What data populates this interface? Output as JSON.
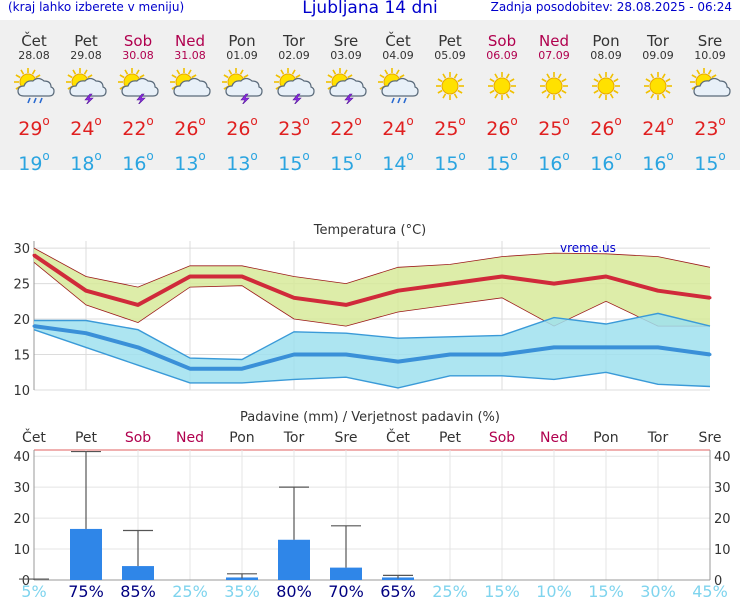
{
  "header": {
    "left": "(kraj lahko izberete v meniju)",
    "title": "Ljubljana 14 dni",
    "updated": "Zadnja posodobitev: 28.08.2025 - 06:24"
  },
  "colors": {
    "weekend": "#b0004e",
    "max_temp": "#e02020",
    "min_temp": "#2aa4e0",
    "max_band": "#d7ea9a",
    "min_band": "#9fe0ee",
    "precip_bar": "#2f86e8",
    "pct_low": "#7fd4ee",
    "pct_high": "#000080"
  },
  "days": [
    {
      "name": "Čet",
      "date": "28.08",
      "weekend": false,
      "icon": "sun-cloud-rain-icon",
      "tmax": "29",
      "tmin": "19"
    },
    {
      "name": "Pet",
      "date": "29.08",
      "weekend": false,
      "icon": "sun-cloud-thunder-icon",
      "tmax": "24",
      "tmin": "18"
    },
    {
      "name": "Sob",
      "date": "30.08",
      "weekend": true,
      "icon": "sun-cloud-thunder-icon",
      "tmax": "22",
      "tmin": "16"
    },
    {
      "name": "Ned",
      "date": "31.08",
      "weekend": true,
      "icon": "sun-cloud-icon",
      "tmax": "26",
      "tmin": "13"
    },
    {
      "name": "Pon",
      "date": "01.09",
      "weekend": false,
      "icon": "sun-cloud-thunder-icon",
      "tmax": "26",
      "tmin": "13"
    },
    {
      "name": "Tor",
      "date": "02.09",
      "weekend": false,
      "icon": "sun-cloud-thunder-icon",
      "tmax": "23",
      "tmin": "15"
    },
    {
      "name": "Sre",
      "date": "03.09",
      "weekend": false,
      "icon": "sun-cloud-thunder-icon",
      "tmax": "22",
      "tmin": "15"
    },
    {
      "name": "Čet",
      "date": "04.09",
      "weekend": false,
      "icon": "sun-cloud-rain-icon",
      "tmax": "24",
      "tmin": "14"
    },
    {
      "name": "Pet",
      "date": "05.09",
      "weekend": false,
      "icon": "sun-icon",
      "tmax": "25",
      "tmin": "15"
    },
    {
      "name": "Sob",
      "date": "06.09",
      "weekend": true,
      "icon": "sun-icon",
      "tmax": "26",
      "tmin": "15"
    },
    {
      "name": "Ned",
      "date": "07.09",
      "weekend": true,
      "icon": "sun-icon",
      "tmax": "25",
      "tmin": "16"
    },
    {
      "name": "Pon",
      "date": "08.09",
      "weekend": false,
      "icon": "sun-icon",
      "tmax": "26",
      "tmin": "16"
    },
    {
      "name": "Tor",
      "date": "09.09",
      "weekend": false,
      "icon": "sun-icon",
      "tmax": "24",
      "tmin": "16"
    },
    {
      "name": "Sre",
      "date": "10.09",
      "weekend": false,
      "icon": "sun-cloud-icon",
      "tmax": "23",
      "tmin": "15"
    }
  ],
  "chart_data": [
    {
      "type": "line",
      "title": "Temperatura (°C)",
      "watermark": "vreme.us",
      "x": [
        "Čet 28.08",
        "Pet 29.08",
        "Sob 30.08",
        "Ned 31.08",
        "Pon 01.09",
        "Tor 02.09",
        "Sre 03.09",
        "Čet 04.09",
        "Pet 05.09",
        "Sob 06.09",
        "Ned 07.09",
        "Pon 08.09",
        "Tor 09.09",
        "Sre 10.09"
      ],
      "ylim": [
        10,
        31
      ],
      "yticks": [
        10,
        15,
        20,
        25,
        30
      ],
      "grid": true,
      "series": [
        {
          "values": [
            29,
            24,
            22,
            26,
            26,
            23,
            22,
            24,
            25,
            26,
            25,
            26,
            24,
            23
          ],
          "band_low": [
            28,
            22,
            19.5,
            24.5,
            24.7,
            20,
            19,
            21,
            22,
            23,
            19,
            22.5,
            19,
            19
          ],
          "band_high": [
            30,
            26,
            24.5,
            27.5,
            27.5,
            26,
            25,
            27.3,
            27.7,
            28.8,
            29.3,
            29.2,
            28.8,
            27.3
          ]
        },
        {
          "values": [
            19,
            18,
            16,
            13,
            13,
            15,
            15,
            14,
            15,
            15,
            16,
            16,
            16,
            15
          ],
          "band_low": [
            18.5,
            16,
            13.5,
            11,
            11,
            11.5,
            11.8,
            10.3,
            12,
            12,
            11.5,
            12.5,
            10.8,
            10.5
          ],
          "band_high": [
            19.8,
            19.8,
            18.5,
            14.5,
            14.3,
            18.2,
            18,
            17.3,
            17.5,
            17.7,
            20.2,
            19.3,
            20.8,
            19
          ]
        }
      ]
    },
    {
      "type": "bar",
      "title": "Padavine (mm) / Verjetnost padavin (%)",
      "categories": [
        "Čet",
        "Pet",
        "Sob",
        "Ned",
        "Pon",
        "Tor",
        "Sre",
        "Čet",
        "Pet",
        "Sob",
        "Ned",
        "Pon",
        "Tor",
        "Sre"
      ],
      "ylim": [
        0,
        42
      ],
      "yticks": [
        0,
        10,
        20,
        30,
        40
      ],
      "grid": true,
      "series": [
        {
          "values": [
            0,
            16.5,
            4.5,
            0,
            0.5,
            13,
            4,
            0.5,
            0,
            0,
            0,
            0,
            0,
            0
          ],
          "error_max": [
            0.3,
            41.5,
            16,
            0,
            2,
            30,
            17.5,
            1.5,
            0,
            0,
            0,
            0,
            0,
            0
          ]
        }
      ],
      "probability": [
        "5%",
        "75%",
        "85%",
        "25%",
        "35%",
        "80%",
        "70%",
        "65%",
        "25%",
        "15%",
        "10%",
        "15%",
        "30%",
        "45%"
      ]
    }
  ]
}
